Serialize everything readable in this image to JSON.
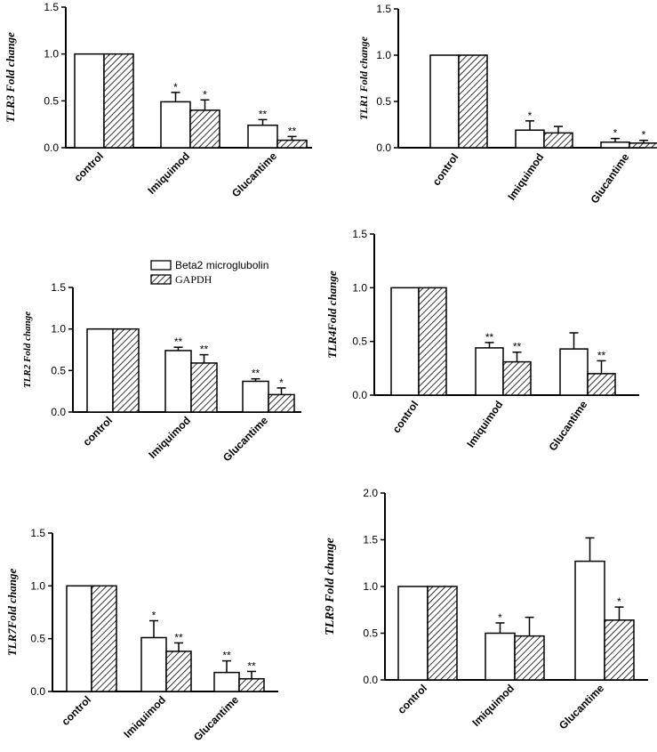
{
  "legend": {
    "entries": [
      {
        "label": "Beta2 microglubolin",
        "pattern": "open"
      },
      {
        "label": "GAPDH",
        "pattern": "hatched"
      }
    ]
  },
  "chart_data": [
    {
      "type": "bar",
      "ylabel": "TLR3 Fold change",
      "categories": [
        "control",
        "Imiquimod",
        "Glucantime"
      ],
      "ylim": [
        0,
        1.5
      ],
      "yticks": [
        "0.0",
        "0.5",
        "1.0",
        "1.5"
      ],
      "series": [
        {
          "name": "Beta2 microglubolin",
          "values": [
            1.0,
            0.49,
            0.24
          ],
          "errors": [
            0,
            0.1,
            0.06
          ],
          "stars": [
            "",
            "*",
            "**"
          ]
        },
        {
          "name": "GAPDH",
          "values": [
            1.0,
            0.4,
            0.08
          ],
          "errors": [
            0,
            0.11,
            0.04
          ],
          "stars": [
            "",
            "*",
            "**"
          ]
        }
      ]
    },
    {
      "type": "bar",
      "ylabel": "TLR1 Fold change",
      "categories": [
        "control",
        "Imiquimod",
        "Glucantime"
      ],
      "ylim": [
        0,
        1.5
      ],
      "yticks": [
        "0.0",
        "0.5",
        "1.0",
        "1.5"
      ],
      "series": [
        {
          "name": "Beta2 microglubolin",
          "values": [
            1.0,
            0.19,
            0.06
          ],
          "errors": [
            0,
            0.1,
            0.04
          ],
          "stars": [
            "",
            "*",
            "*"
          ]
        },
        {
          "name": "GAPDH",
          "values": [
            1.0,
            0.16,
            0.05
          ],
          "errors": [
            0,
            0.07,
            0.03
          ],
          "stars": [
            "",
            "",
            "*"
          ]
        }
      ]
    },
    {
      "type": "bar",
      "ylabel": "TLR2 Fold change",
      "categories": [
        "control",
        "Imiquimod",
        "Glucantime"
      ],
      "ylim": [
        0,
        1.5
      ],
      "yticks": [
        "0.0",
        "0.5",
        "1.0",
        "1.5"
      ],
      "series": [
        {
          "name": "Beta2 microglubolin",
          "values": [
            1.0,
            0.74,
            0.37
          ],
          "errors": [
            0,
            0.04,
            0.03
          ],
          "stars": [
            "",
            "**",
            "**"
          ]
        },
        {
          "name": "GAPDH",
          "values": [
            1.0,
            0.59,
            0.21
          ],
          "errors": [
            0,
            0.1,
            0.08
          ],
          "stars": [
            "",
            "**",
            "*"
          ]
        }
      ]
    },
    {
      "type": "bar",
      "ylabel": "TLR4Fold change",
      "categories": [
        "control",
        "Imiquimod",
        "Glucantime"
      ],
      "ylim": [
        0,
        1.5
      ],
      "yticks": [
        "0.0",
        "0.5",
        "1.0",
        "1.5"
      ],
      "series": [
        {
          "name": "Beta2 microglubolin",
          "values": [
            1.0,
            0.44,
            0.43
          ],
          "errors": [
            0,
            0.05,
            0.15
          ],
          "stars": [
            "",
            "**",
            ""
          ]
        },
        {
          "name": "GAPDH",
          "values": [
            1.0,
            0.31,
            0.2
          ],
          "errors": [
            0,
            0.09,
            0.12
          ],
          "stars": [
            "",
            "**",
            "**"
          ]
        }
      ]
    },
    {
      "type": "bar",
      "ylabel": "TLR7Fold change",
      "categories": [
        "control",
        "Imiquimod",
        "Glucantime"
      ],
      "ylim": [
        0,
        1.5
      ],
      "yticks": [
        "0.0",
        "0.5",
        "1.0",
        "1.5"
      ],
      "series": [
        {
          "name": "Beta2 microglubolin",
          "values": [
            1.0,
            0.51,
            0.18
          ],
          "errors": [
            0,
            0.16,
            0.11
          ],
          "stars": [
            "",
            "*",
            "**"
          ]
        },
        {
          "name": "GAPDH",
          "values": [
            1.0,
            0.38,
            0.12
          ],
          "errors": [
            0,
            0.08,
            0.07
          ],
          "stars": [
            "",
            "**",
            "**"
          ]
        }
      ]
    },
    {
      "type": "bar",
      "ylabel": "TLR9 Fold change",
      "categories": [
        "control",
        "Imiquimod",
        "Glucantime"
      ],
      "ylim": [
        0,
        2.0
      ],
      "yticks": [
        "0.0",
        "0.5",
        "1.0",
        "1.5",
        "2.0"
      ],
      "series": [
        {
          "name": "Beta2 microglubolin",
          "values": [
            1.0,
            0.5,
            1.27
          ],
          "errors": [
            0,
            0.11,
            0.25
          ],
          "stars": [
            "",
            "*",
            ""
          ]
        },
        {
          "name": "GAPDH",
          "values": [
            1.0,
            0.47,
            0.64
          ],
          "errors": [
            0,
            0.2,
            0.14
          ],
          "stars": [
            "",
            "",
            "*"
          ]
        }
      ]
    }
  ]
}
